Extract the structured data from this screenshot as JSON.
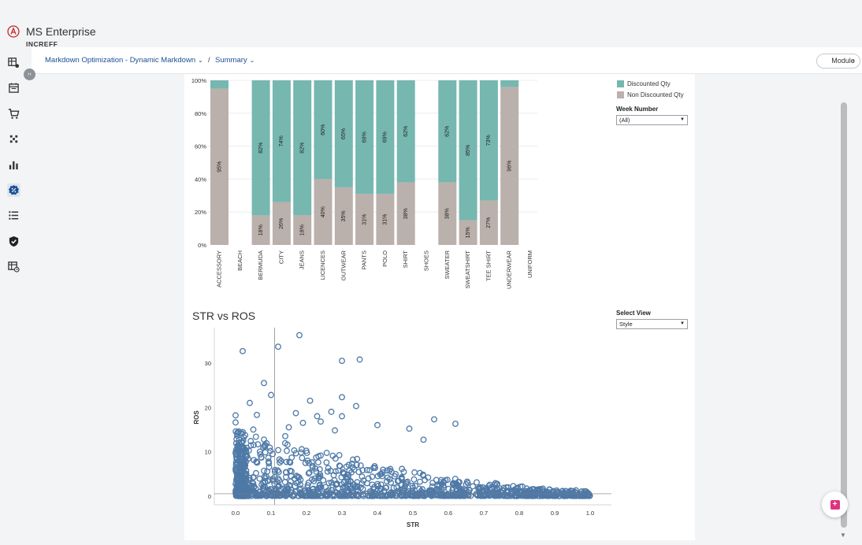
{
  "app": {
    "name": "MS Enterprise",
    "sub": "INCREFF"
  },
  "breadcrumb": {
    "first": "Markdown Optimization - Dynamic Markdown",
    "second": "Summary",
    "separator": "/"
  },
  "module_button": "Module",
  "sidebar": {
    "toggle_icon": "expand-icon",
    "items": [
      {
        "icon": "table-settings-icon"
      },
      {
        "icon": "calendar-icon"
      },
      {
        "icon": "cart-icon"
      },
      {
        "icon": "grid-dots-icon"
      },
      {
        "icon": "bar-chart-icon"
      },
      {
        "icon": "discount-badge-icon",
        "active": true
      },
      {
        "icon": "list-icon"
      },
      {
        "icon": "shield-check-icon"
      },
      {
        "icon": "table-clock-icon"
      }
    ]
  },
  "legend": {
    "items": [
      {
        "label": "Discounted Qty",
        "color": "#76b7b0"
      },
      {
        "label": "Non Discounted Qty",
        "color": "#bab0ac"
      }
    ]
  },
  "filters": {
    "week": {
      "title": "Week Number",
      "value": "(All)"
    },
    "view": {
      "title": "Select View",
      "value": "Style"
    }
  },
  "scatter_title": "STR vs ROS",
  "chart_data": [
    {
      "type": "bar",
      "stacked": true,
      "percent": true,
      "categories": [
        "ACCESSORY",
        "BEACH",
        "BERMUDA",
        "CITY",
        "JEANS",
        "LICENCES",
        "OUTWEAR",
        "PANTS",
        "POLO",
        "SHIRT",
        "SHOES",
        "SWEATER",
        "SWEATSHIRT",
        "TEE SHIRT",
        "UNDERWEAR",
        "UNIFORM"
      ],
      "series": [
        {
          "name": "Non Discounted Qty",
          "color": "#bab0ac",
          "values": [
            95,
            null,
            18,
            26,
            18,
            40,
            35,
            31,
            31,
            38,
            null,
            38,
            15,
            27,
            96,
            null
          ],
          "labels": [
            "95%",
            "",
            "18%",
            "26%",
            "18%",
            "40%",
            "35%",
            "31%",
            "31%",
            "38%",
            "",
            "38%",
            "15%",
            "27%",
            "96%",
            ""
          ]
        },
        {
          "name": "Discounted Qty",
          "color": "#76b7b0",
          "values": [
            5,
            null,
            82,
            74,
            82,
            60,
            65,
            69,
            69,
            62,
            null,
            62,
            85,
            73,
            4,
            null
          ],
          "labels": [
            "",
            "",
            "82%",
            "74%",
            "82%",
            "60%",
            "65%",
            "69%",
            "69%",
            "62%",
            "",
            "62%",
            "85%",
            "73%",
            "",
            ""
          ]
        }
      ],
      "yticks": [
        "0%",
        "20%",
        "40%",
        "60%",
        "80%",
        "100%"
      ],
      "ylim": [
        0,
        100
      ]
    },
    {
      "type": "scatter",
      "title": "STR vs ROS",
      "xlabel": "STR",
      "ylabel": "ROS",
      "xlim": [
        -0.06,
        1.06
      ],
      "ylim": [
        -2,
        38
      ],
      "xticks": [
        "0.0",
        "0.1",
        "0.2",
        "0.3",
        "0.4",
        "0.5",
        "0.6",
        "0.7",
        "0.8",
        "0.9",
        "1.0"
      ],
      "yticks": [
        "0",
        "10",
        "20",
        "30"
      ],
      "ref_lines": {
        "x": 0.11,
        "y": 0.5
      },
      "color": "#4e79a7",
      "points": [
        [
          0.02,
          32.7
        ],
        [
          0.12,
          33.7
        ],
        [
          0.18,
          36.3
        ],
        [
          0.3,
          30.5
        ],
        [
          0.35,
          30.8
        ],
        [
          0.08,
          25.5
        ],
        [
          0.1,
          22.8
        ],
        [
          0.3,
          22.3
        ],
        [
          0.21,
          21.5
        ],
        [
          0.04,
          21.0
        ],
        [
          0.34,
          20.3
        ],
        [
          0.17,
          18.7
        ],
        [
          0.27,
          19.0
        ],
        [
          0.0,
          18.2
        ],
        [
          0.06,
          18.3
        ],
        [
          0.23,
          18.0
        ],
        [
          0.0,
          16.6
        ],
        [
          0.3,
          18.0
        ],
        [
          0.56,
          17.3
        ],
        [
          0.62,
          16.3
        ],
        [
          0.49,
          15.2
        ],
        [
          0.53,
          12.7
        ],
        [
          0.05,
          15.0
        ],
        [
          0.15,
          15.5
        ],
        [
          0.28,
          14.8
        ],
        [
          0.4,
          16.0
        ],
        [
          0.19,
          16.5
        ],
        [
          0.24,
          16.8
        ],
        [
          0.14,
          13.5
        ]
      ]
    }
  ]
}
